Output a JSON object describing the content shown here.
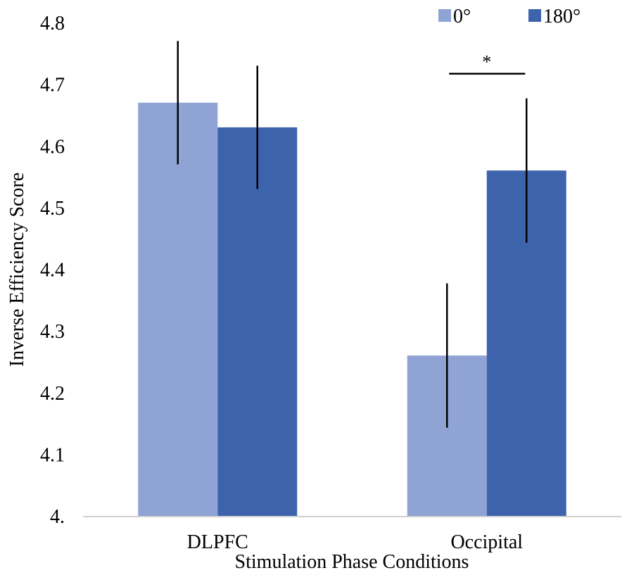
{
  "chart_data": {
    "type": "bar",
    "title": "",
    "xlabel": "Stimulation Phase Conditions",
    "ylabel": "Inverse Efficiency Score",
    "categories": [
      "DLPFC",
      "Occipital"
    ],
    "series": [
      {
        "name": "0°",
        "color": "#8FA3D4",
        "values": [
          4.67,
          4.26
        ],
        "error_bars": [
          [
            4.57,
            4.77
          ],
          [
            4.143,
            4.377
          ]
        ]
      },
      {
        "name": "180°",
        "color": "#3C63AB",
        "values": [
          4.63,
          4.56
        ],
        "error_bars": [
          [
            4.53,
            4.73
          ],
          [
            4.443,
            4.677
          ]
        ]
      }
    ],
    "ylim": [
      4.0,
      4.8
    ],
    "yticks": [
      4.0,
      4.1,
      4.2,
      4.3,
      4.4,
      4.5,
      4.6,
      4.7,
      4.8
    ],
    "ytick_labels": [
      "4.",
      "4.1",
      "4.2",
      "4.3",
      "4.4",
      "4.5",
      "4.6",
      "4.7",
      "4.8"
    ],
    "grid": false,
    "legend": "top-right",
    "annotations": [
      {
        "text": "*",
        "category": "Occipital",
        "value": 4.717
      }
    ]
  }
}
